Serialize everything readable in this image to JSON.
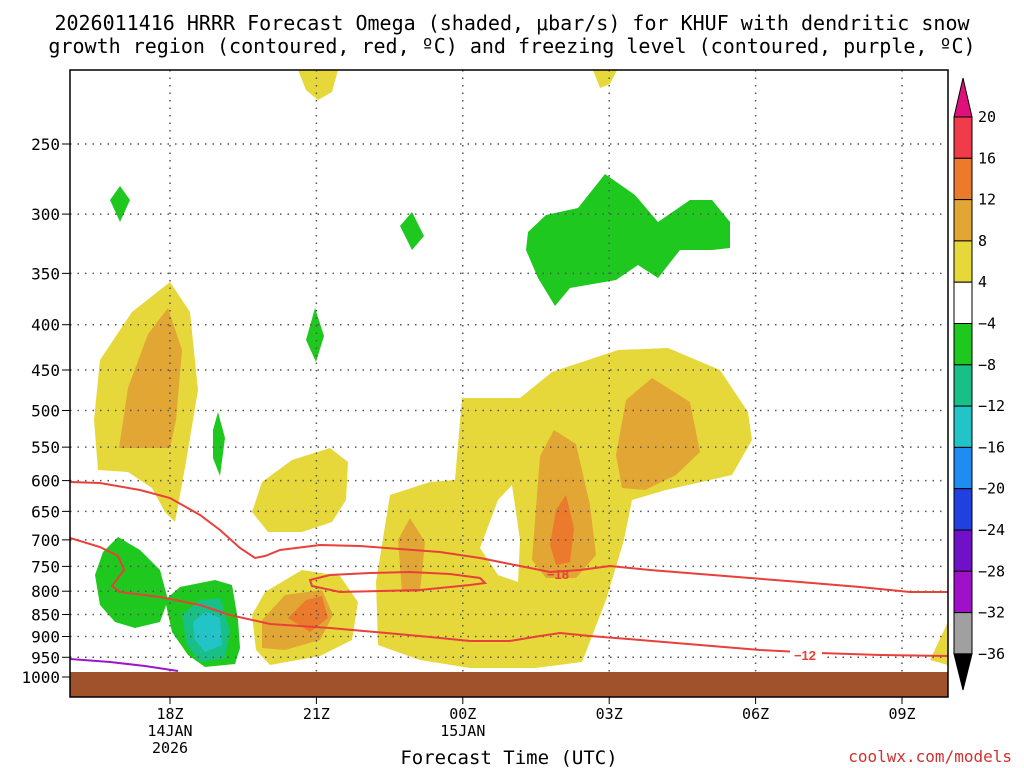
{
  "title": {
    "line1": "2026011416 HRRR Forecast Omega (shaded, μbar/s) for KHUF with dendritic snow",
    "line2": "growth region (contoured, red, ºC) and freezing level (contoured, purple, ºC)"
  },
  "credit": "coolwx.com/models",
  "colors": {
    "shade_4_8": "#e6d83a",
    "shade_8_12": "#e2a634",
    "shade_12_16": "#ec7a2c",
    "shade_neg4_neg8": "#1ec81e",
    "shade_neg8_neg12": "#18c088",
    "shade_neg12_neg16": "#22c4c8",
    "dgz_contour": "#e8403a",
    "freezing_level": "#9a18c8",
    "ground": "#a0522d"
  },
  "chart_data": {
    "type": "heatmap",
    "xlabel": "Forecast Time (UTC)",
    "ylabel": "",
    "x_ticks": [
      {
        "label": "18Z",
        "date": "14JAN",
        "year": "2026"
      },
      {
        "label": "21Z",
        "date": "",
        "year": ""
      },
      {
        "label": "00Z",
        "date": "15JAN",
        "year": ""
      },
      {
        "label": "03Z",
        "date": "",
        "year": ""
      },
      {
        "label": "06Z",
        "date": "",
        "year": ""
      },
      {
        "label": "09Z",
        "date": "",
        "year": ""
      }
    ],
    "y_ticks": [
      250,
      300,
      350,
      400,
      450,
      500,
      550,
      600,
      650,
      700,
      750,
      800,
      850,
      900,
      950,
      1000
    ],
    "y_range_hpa": [
      200,
      1010
    ],
    "y_scale": "log",
    "grid": true,
    "colorbar": {
      "labels": [
        "20",
        "16",
        "12",
        "8",
        "4",
        "−4",
        "−8",
        "−12",
        "−16",
        "−20",
        "−24",
        "−28",
        "−32",
        "−36"
      ],
      "colors": [
        "#f03c4a",
        "#ec7a2c",
        "#e2a634",
        "#e6d83a",
        "#ffffff",
        "#1ec81e",
        "#18c088",
        "#22c4c8",
        "#1e8cf0",
        "#2040e0",
        "#7010c8",
        "#a010c8",
        "#a0a0a0"
      ],
      "top_arrow_color": "#e0107a",
      "bottom_arrow_color": "#000000"
    },
    "contour_labels": [
      "−18",
      "−12"
    ]
  }
}
